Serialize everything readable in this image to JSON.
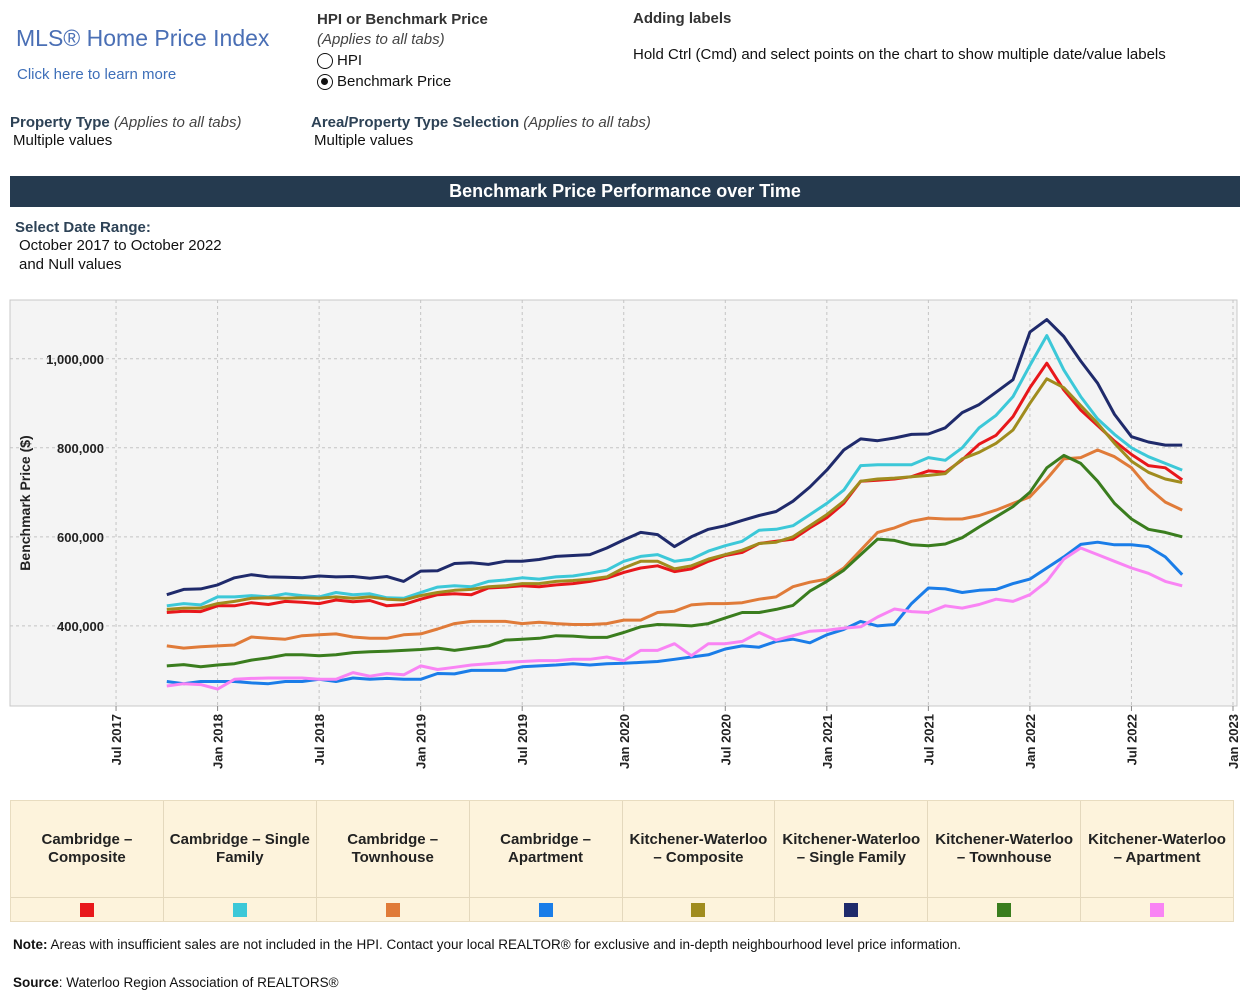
{
  "header": {
    "logo": "MLS® Home Price Index",
    "learn_more": "Click here to learn more"
  },
  "measure": {
    "title": "HPI or Benchmark Price",
    "subtitle": "(Applies to all tabs)",
    "options": [
      "HPI",
      "Benchmark Price"
    ],
    "selected": 1
  },
  "labels_help": {
    "title": "Adding labels",
    "text": "Hold Ctrl (Cmd) and select points on the chart to show multiple date/value labels"
  },
  "property_type": {
    "label": "Property Type",
    "note": "(Applies to all tabs)",
    "value": "Multiple values"
  },
  "area_selection": {
    "label": "Area/Property Type Selection",
    "note": "(Applies to all tabs)",
    "value": "Multiple values"
  },
  "section_title": "Benchmark Price Performance over Time",
  "date_range": {
    "label": "Select Date Range:",
    "lines": [
      "October 2017 to October 2022",
      "and Null values"
    ]
  },
  "chart_data": {
    "type": "line",
    "y_label": "Benchmark Price ($)",
    "x": [
      "2017-10",
      "2017-11",
      "2017-12",
      "2018-01",
      "2018-02",
      "2018-03",
      "2018-04",
      "2018-05",
      "2018-06",
      "2018-07",
      "2018-08",
      "2018-09",
      "2018-10",
      "2018-11",
      "2018-12",
      "2019-01",
      "2019-02",
      "2019-03",
      "2019-04",
      "2019-05",
      "2019-06",
      "2019-07",
      "2019-08",
      "2019-09",
      "2019-10",
      "2019-11",
      "2019-12",
      "2020-01",
      "2020-02",
      "2020-03",
      "2020-04",
      "2020-05",
      "2020-06",
      "2020-07",
      "2020-08",
      "2020-09",
      "2020-10",
      "2020-11",
      "2020-12",
      "2021-01",
      "2021-02",
      "2021-03",
      "2021-04",
      "2021-05",
      "2021-06",
      "2021-07",
      "2021-08",
      "2021-09",
      "2021-10",
      "2021-11",
      "2021-12",
      "2022-01",
      "2022-02",
      "2022-03",
      "2022-04",
      "2022-05",
      "2022-06",
      "2022-07",
      "2022-08",
      "2022-09",
      "2022-10"
    ],
    "xlim": [
      "2017-01",
      "2023-01"
    ],
    "xticks": [
      {
        "value": "2017-07",
        "label": "Jul 2017"
      },
      {
        "value": "2018-01",
        "label": "Jan 2018"
      },
      {
        "value": "2018-07",
        "label": "Jul 2018"
      },
      {
        "value": "2019-01",
        "label": "Jan 2019"
      },
      {
        "value": "2019-07",
        "label": "Jul 2019"
      },
      {
        "value": "2020-01",
        "label": "Jan 2020"
      },
      {
        "value": "2020-07",
        "label": "Jul 2020"
      },
      {
        "value": "2021-01",
        "label": "Jan 2021"
      },
      {
        "value": "2021-07",
        "label": "Jul 2021"
      },
      {
        "value": "2022-01",
        "label": "Jan 2022"
      },
      {
        "value": "2022-07",
        "label": "Jul 2022"
      },
      {
        "value": "2023-01",
        "label": "Jan 2023"
      }
    ],
    "ylim": [
      220000,
      1132000
    ],
    "yticks": [
      {
        "value": 400000,
        "label": "400,000"
      },
      {
        "value": 600000,
        "label": "600,000"
      },
      {
        "value": 800000,
        "label": "800,000"
      },
      {
        "value": 1000000,
        "label": "1,000,000"
      }
    ],
    "grid": true,
    "series": [
      {
        "name": "Cambridge – Composite",
        "color": "#e8171b",
        "values": [
          430000,
          433000,
          432000,
          445000,
          445000,
          452000,
          448000,
          455000,
          453000,
          450000,
          458000,
          454000,
          457000,
          445000,
          448000,
          460000,
          470000,
          472000,
          470000,
          485000,
          487000,
          490000,
          488000,
          492000,
          495000,
          500000,
          507000,
          520000,
          530000,
          535000,
          522000,
          528000,
          545000,
          558000,
          565000,
          585000,
          590000,
          595000,
          620000,
          643000,
          675000,
          725000,
          727000,
          730000,
          735000,
          748000,
          745000,
          773000,
          808000,
          828000,
          870000,
          935000,
          990000,
          930000,
          885000,
          850000,
          815000,
          785000,
          760000,
          755000,
          728000
        ]
      },
      {
        "name": "Cambridge – Single Family",
        "color": "#3cc8d8",
        "values": [
          445000,
          450000,
          447000,
          465000,
          465000,
          468000,
          465000,
          472000,
          468000,
          465000,
          475000,
          470000,
          472000,
          463000,
          462000,
          475000,
          487000,
          490000,
          488000,
          500000,
          503000,
          508000,
          505000,
          510000,
          512000,
          518000,
          525000,
          545000,
          556000,
          560000,
          545000,
          550000,
          568000,
          580000,
          590000,
          615000,
          617000,
          625000,
          650000,
          675000,
          705000,
          760000,
          762000,
          762000,
          762000,
          778000,
          772000,
          800000,
          845000,
          873000,
          915000,
          985000,
          1052000,
          975000,
          915000,
          865000,
          830000,
          800000,
          780000,
          765000,
          750000
        ]
      },
      {
        "name": "Cambridge – Townhouse",
        "color": "#e07b39",
        "values": [
          355000,
          350000,
          353000,
          355000,
          357000,
          375000,
          372000,
          370000,
          378000,
          380000,
          382000,
          375000,
          372000,
          372000,
          380000,
          382000,
          393000,
          405000,
          410000,
          410000,
          410000,
          405000,
          408000,
          405000,
          403000,
          403000,
          405000,
          413000,
          413000,
          430000,
          433000,
          447000,
          450000,
          450000,
          452000,
          460000,
          465000,
          488000,
          498000,
          505000,
          530000,
          570000,
          610000,
          620000,
          635000,
          642000,
          640000,
          640000,
          648000,
          660000,
          675000,
          690000,
          730000,
          775000,
          778000,
          795000,
          780000,
          755000,
          710000,
          678000,
          660000
        ]
      },
      {
        "name": "Cambridge – Apartment",
        "color": "#1a7de8",
        "values": [
          275000,
          270000,
          275000,
          275000,
          275000,
          272000,
          270000,
          275000,
          275000,
          280000,
          275000,
          283000,
          280000,
          282000,
          280000,
          280000,
          293000,
          292000,
          300000,
          300000,
          300000,
          308000,
          310000,
          312000,
          315000,
          312000,
          315000,
          316000,
          318000,
          320000,
          325000,
          330000,
          335000,
          348000,
          355000,
          352000,
          365000,
          370000,
          362000,
          380000,
          392000,
          410000,
          400000,
          403000,
          450000,
          485000,
          483000,
          475000,
          480000,
          482000,
          495000,
          505000,
          530000,
          555000,
          583000,
          588000,
          582000,
          582000,
          578000,
          555000,
          515000
        ]
      },
      {
        "name": "Kitchener-Waterloo – Composite",
        "color": "#a08c1e",
        "values": [
          437000,
          440000,
          440000,
          450000,
          455000,
          462000,
          463000,
          462000,
          463000,
          462000,
          465000,
          462000,
          465000,
          460000,
          458000,
          468000,
          475000,
          480000,
          482000,
          488000,
          490000,
          495000,
          495000,
          500000,
          502000,
          505000,
          510000,
          530000,
          545000,
          545000,
          528000,
          535000,
          550000,
          560000,
          570000,
          585000,
          588000,
          600000,
          625000,
          650000,
          680000,
          725000,
          730000,
          732000,
          735000,
          738000,
          742000,
          775000,
          790000,
          810000,
          840000,
          900000,
          955000,
          935000,
          895000,
          855000,
          810000,
          770000,
          745000,
          730000,
          722000
        ]
      },
      {
        "name": "Kitchener-Waterloo – Single Family",
        "color": "#1f2a6b",
        "values": [
          470000,
          482000,
          483000,
          492000,
          508000,
          515000,
          510000,
          509000,
          508000,
          512000,
          510000,
          511000,
          507000,
          511000,
          500000,
          523000,
          524000,
          540000,
          542000,
          538000,
          545000,
          545000,
          549000,
          556000,
          558000,
          560000,
          575000,
          593000,
          610000,
          605000,
          578000,
          600000,
          617000,
          625000,
          637000,
          648000,
          657000,
          680000,
          712000,
          750000,
          795000,
          820000,
          816000,
          822000,
          830000,
          831000,
          845000,
          879000,
          897000,
          925000,
          953000,
          1060000,
          1088000,
          1050000,
          995000,
          945000,
          875000,
          825000,
          813000,
          806000,
          806000
        ]
      },
      {
        "name": "Kitchener-Waterloo – Townhouse",
        "color": "#3a7d1e",
        "values": [
          310000,
          313000,
          308000,
          312000,
          315000,
          323000,
          328000,
          335000,
          335000,
          333000,
          335000,
          340000,
          342000,
          343000,
          345000,
          347000,
          350000,
          345000,
          350000,
          355000,
          368000,
          370000,
          372000,
          378000,
          377000,
          374000,
          374000,
          385000,
          398000,
          403000,
          402000,
          400000,
          405000,
          418000,
          430000,
          430000,
          437000,
          446000,
          478000,
          500000,
          525000,
          560000,
          595000,
          592000,
          582000,
          580000,
          584000,
          598000,
          622000,
          645000,
          668000,
          700000,
          755000,
          783000,
          765000,
          725000,
          675000,
          640000,
          617000,
          610000,
          600000
        ]
      },
      {
        "name": "Kitchener-Waterloo – Apartment",
        "color": "#f984f4",
        "values": [
          265000,
          270000,
          268000,
          258000,
          280000,
          282000,
          283000,
          283000,
          283000,
          280000,
          280000,
          295000,
          287000,
          293000,
          290000,
          310000,
          302000,
          307000,
          312000,
          315000,
          318000,
          320000,
          322000,
          322000,
          325000,
          325000,
          330000,
          322000,
          345000,
          345000,
          360000,
          333000,
          360000,
          360000,
          365000,
          385000,
          368000,
          378000,
          388000,
          390000,
          395000,
          398000,
          420000,
          438000,
          432000,
          430000,
          445000,
          440000,
          448000,
          460000,
          455000,
          470000,
          500000,
          550000,
          575000,
          560000,
          545000,
          530000,
          518000,
          500000,
          490000
        ]
      }
    ]
  },
  "footer": {
    "note_label": "Note:",
    "note": "Areas with insufficient sales are not included in the HPI. Contact your local REALTOR® for exclusive and in-depth neighbourhood level price information.",
    "source_label": "Source",
    "source": ": Waterloo Region Association of REALTORS®"
  }
}
